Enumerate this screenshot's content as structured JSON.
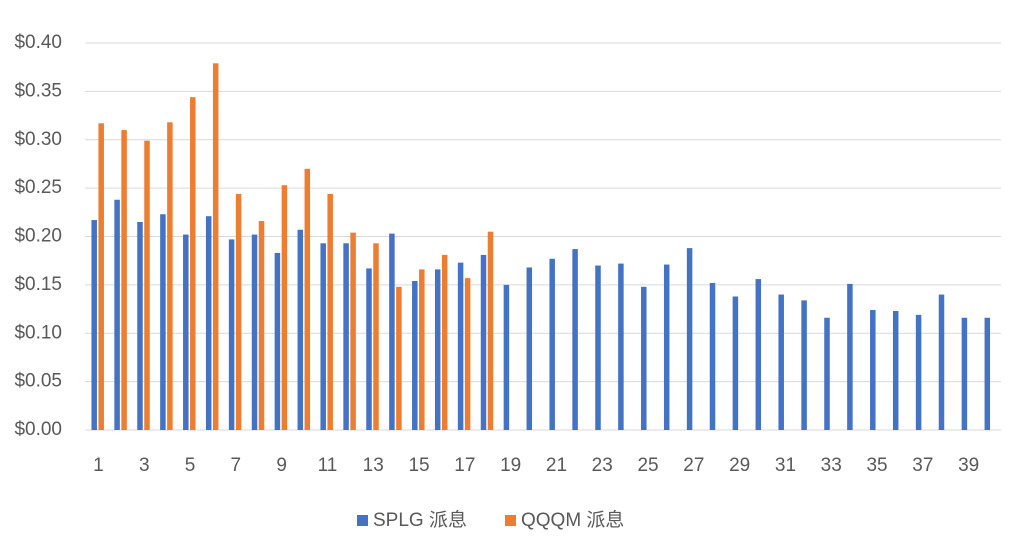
{
  "chart_data": {
    "type": "bar",
    "categories": [
      "1",
      null,
      "3",
      null,
      "5",
      null,
      "7",
      null,
      "9",
      null,
      "11",
      null,
      "13",
      null,
      "15",
      null,
      "17",
      null,
      "19",
      null,
      "21",
      null,
      "23",
      null,
      "25",
      null,
      "27",
      null,
      "29",
      null,
      "31",
      null,
      "33",
      null,
      "35",
      null,
      "37",
      null,
      "39",
      null
    ],
    "series": [
      {
        "name": "SPLG 派息",
        "color": "#4472c4",
        "values": [
          0.217,
          0.238,
          0.215,
          0.223,
          0.202,
          0.221,
          0.197,
          0.202,
          0.183,
          0.207,
          0.193,
          0.193,
          0.167,
          0.203,
          0.154,
          0.166,
          0.173,
          0.181,
          0.15,
          0.168,
          0.177,
          0.187,
          0.17,
          0.172,
          0.148,
          0.171,
          0.188,
          0.152,
          0.138,
          0.156,
          0.14,
          0.134,
          0.116,
          0.151,
          0.124,
          0.123,
          0.119,
          0.14,
          0.116,
          0.116
        ]
      },
      {
        "name": "QQQM 派息",
        "color": "#ed7d31",
        "values": [
          0.317,
          0.31,
          0.299,
          0.318,
          0.344,
          0.379,
          0.244,
          0.216,
          0.253,
          0.27,
          0.244,
          0.204,
          0.193,
          0.148,
          0.166,
          0.181,
          0.157,
          0.205,
          null,
          null,
          null,
          null,
          null,
          null,
          null,
          null,
          null,
          null,
          null,
          null,
          null,
          null,
          null,
          null,
          null,
          null,
          null,
          null,
          null,
          null
        ]
      }
    ],
    "ylim": [
      0,
      0.4
    ],
    "yticks": [
      {
        "value": 0,
        "label": "$0.00"
      },
      {
        "value": 0.05,
        "label": "$0.05"
      },
      {
        "value": 0.1,
        "label": "$0.10"
      },
      {
        "value": 0.15,
        "label": "$0.15"
      },
      {
        "value": 0.2,
        "label": "$0.20"
      },
      {
        "value": 0.25,
        "label": "$0.25"
      },
      {
        "value": 0.3,
        "label": "$0.30"
      },
      {
        "value": 0.35,
        "label": "$0.35"
      },
      {
        "value": 0.4,
        "label": "$0.40"
      }
    ],
    "grid": true,
    "legend": "bottom"
  }
}
